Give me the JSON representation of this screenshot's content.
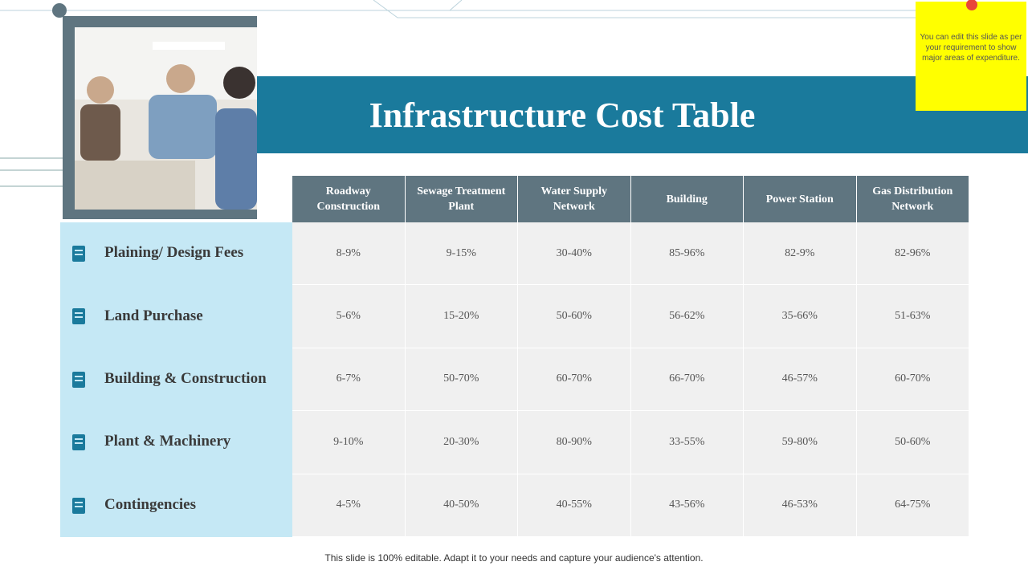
{
  "title": "Infrastructure Cost Table",
  "note": "You can edit this slide as per your requirement to show major areas of expenditure.",
  "table": {
    "columns": [
      "Roadway Construction",
      "Sewage Treatment Plant",
      "Water Supply Network",
      "Building",
      "Power Station",
      "Gas Distribution Network"
    ],
    "rows": [
      {
        "label": "Plaining/ Design Fees",
        "cells": [
          "8-9%",
          "9-15%",
          "30-40%",
          "85-96%",
          "82-9%",
          "82-96%"
        ]
      },
      {
        "label": "Land Purchase",
        "cells": [
          "5-6%",
          "15-20%",
          "50-60%",
          "56-62%",
          "35-66%",
          "51-63%"
        ]
      },
      {
        "label": "Building & Construction",
        "cells": [
          "6-7%",
          "50-70%",
          "60-70%",
          "66-70%",
          "46-57%",
          "60-70%"
        ]
      },
      {
        "label": "Plant & Machinery",
        "cells": [
          "9-10%",
          "20-30%",
          "80-90%",
          "33-55%",
          "59-80%",
          "50-60%"
        ]
      },
      {
        "label": "Contingencies",
        "cells": [
          "4-5%",
          "40-50%",
          "40-55%",
          "43-56%",
          "46-53%",
          "64-75%"
        ]
      }
    ]
  },
  "footer": "This slide is 100% editable. Adapt it to your needs and capture your audience's attention."
}
